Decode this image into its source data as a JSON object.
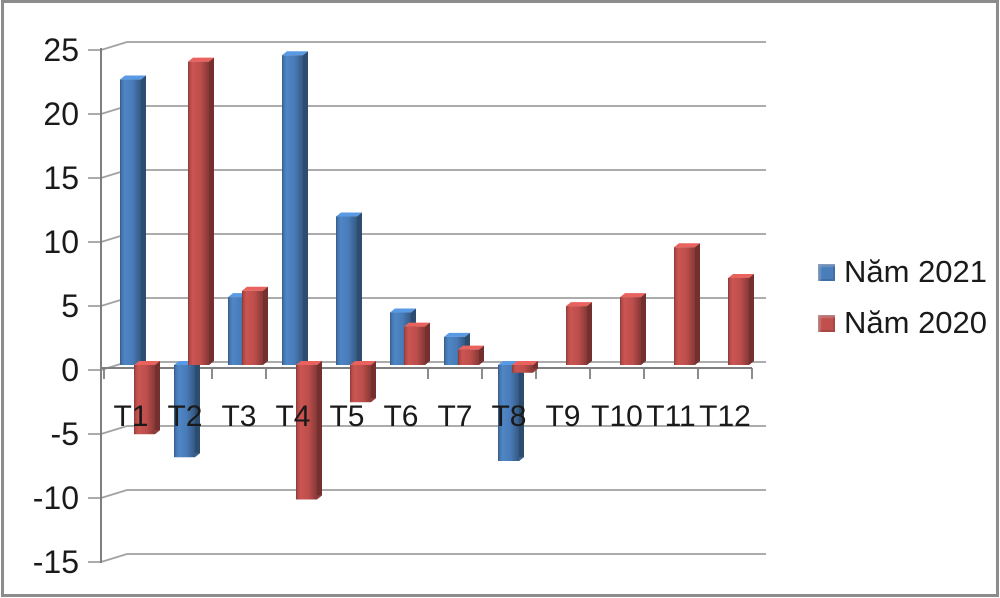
{
  "frame": {
    "border_color": "#8c8c8c",
    "background": "#ffffff"
  },
  "chart_data": {
    "type": "bar",
    "style": "3d-clustered",
    "categories": [
      "T1",
      "T2",
      "T3",
      "T4",
      "T5",
      "T6",
      "T7",
      "T8",
      "T9",
      "T10",
      "T11",
      "T12"
    ],
    "series": [
      {
        "name": "Năm 2021",
        "color": "#4a7ebb",
        "values": [
          22.3,
          -7.2,
          5.3,
          24.2,
          11.6,
          4.1,
          2.2,
          -7.5,
          null,
          null,
          null,
          null
        ]
      },
      {
        "name": "Năm 2020",
        "color": "#c0504d",
        "values": [
          -5.4,
          23.7,
          5.8,
          -10.5,
          -2.9,
          3.0,
          1.2,
          -0.6,
          4.6,
          5.3,
          9.2,
          6.8
        ]
      }
    ],
    "title": "",
    "xlabel": "",
    "ylabel": "",
    "ylim": [
      -15,
      25
    ],
    "yticks": [
      25,
      20,
      15,
      10,
      5,
      0,
      -5,
      -10,
      -15
    ],
    "grid": true,
    "legend_position": "right",
    "axis_color": "#7f7f7f",
    "gridline_color": "#a0a0a0",
    "label_color": "#1a1a1a"
  }
}
